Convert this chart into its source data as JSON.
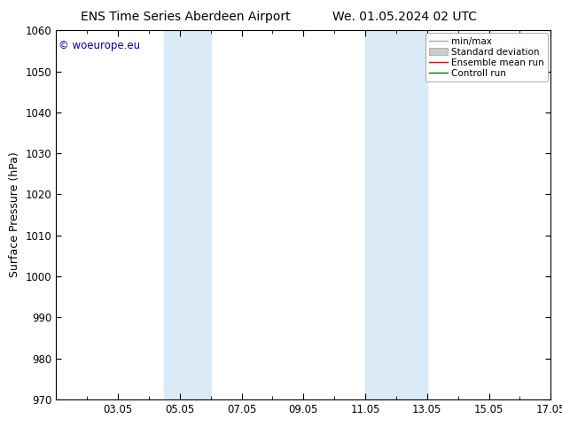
{
  "title_left": "ENS Time Series Aberdeen Airport",
  "title_right": "We. 01.05.2024 02 UTC",
  "ylabel": "Surface Pressure (hPa)",
  "ylim": [
    970,
    1060
  ],
  "yticks": [
    970,
    980,
    990,
    1000,
    1010,
    1020,
    1030,
    1040,
    1050,
    1060
  ],
  "xlim_start": 0.0,
  "xlim_end": 16.0,
  "xtick_positions": [
    2,
    4,
    6,
    8,
    10,
    12,
    14,
    16
  ],
  "xtick_labels": [
    "03.05",
    "05.05",
    "07.05",
    "09.05",
    "11.05",
    "13.05",
    "15.05",
    "17.05"
  ],
  "shaded_bands": [
    {
      "xmin": 3.5,
      "xmax": 5.0
    },
    {
      "xmin": 10.0,
      "xmax": 12.0
    }
  ],
  "band_color": "#daeaf7",
  "background_color": "#ffffff",
  "plot_bg_color": "#ffffff",
  "copyright_text": "© woeurope.eu",
  "copyright_color": "#0000cc",
  "legend_items": [
    {
      "label": "min/max",
      "color": "#aaaaaa",
      "lw": 1.0
    },
    {
      "label": "Standard deviation",
      "color": "#cccccc",
      "patch": true
    },
    {
      "label": "Ensemble mean run",
      "color": "#ff0000",
      "lw": 1.0
    },
    {
      "label": "Controll run",
      "color": "#007700",
      "lw": 1.0
    }
  ],
  "title_fontsize": 10,
  "tick_label_fontsize": 8.5,
  "ylabel_fontsize": 9,
  "copyright_fontsize": 8.5,
  "legend_fontsize": 7.5
}
